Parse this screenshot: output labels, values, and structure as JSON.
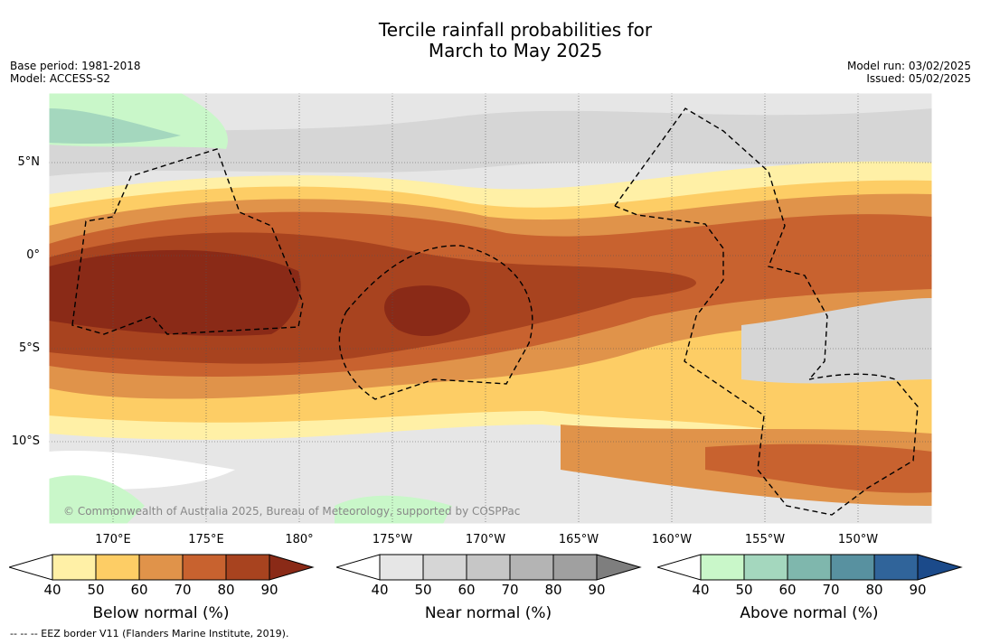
{
  "title_line1": "Tercile rainfall probabilities for",
  "title_line2": "March to May 2025",
  "meta_left": [
    "Base period: 1981-2018",
    "Model: ACCESS-S2"
  ],
  "meta_right": [
    "Model run: 03/02/2025",
    "Issued: 05/02/2025"
  ],
  "copyright": "© Commonwealth of Australia 2025, Bureau of Meteorology, supported by COSPPac",
  "footer": "--  --  -- EEZ border V11 (Flanders Marine Institute, 2019).",
  "lat_labels": [
    "5°N",
    "0°",
    "5°S",
    "10°S"
  ],
  "lon_labels": [
    "170°E",
    "175°E",
    "180°",
    "175°W",
    "170°W",
    "165°W",
    "160°W",
    "155°W",
    "150°W"
  ],
  "colorbars": [
    {
      "label": "Below normal (%)",
      "ticks": [
        "40",
        "50",
        "60",
        "70",
        "80",
        "90"
      ],
      "colors": [
        "#fff0a6",
        "#fdcd65",
        "#e0934a",
        "#c8622f",
        "#a8431f",
        "#8a2a17"
      ]
    },
    {
      "label": "Near normal (%)",
      "ticks": [
        "40",
        "50",
        "60",
        "70",
        "80",
        "90"
      ],
      "colors": [
        "#e6e6e6",
        "#d6d6d6",
        "#c6c6c6",
        "#b4b4b4",
        "#a0a0a0",
        "#7e7e7e"
      ]
    },
    {
      "label": "Above normal (%)",
      "ticks": [
        "40",
        "50",
        "60",
        "70",
        "80",
        "90"
      ],
      "colors": [
        "#c9f7c9",
        "#a4d7be",
        "#7fb7ad",
        "#5891a0",
        "#30649a",
        "#1b4a8a"
      ]
    }
  ]
}
